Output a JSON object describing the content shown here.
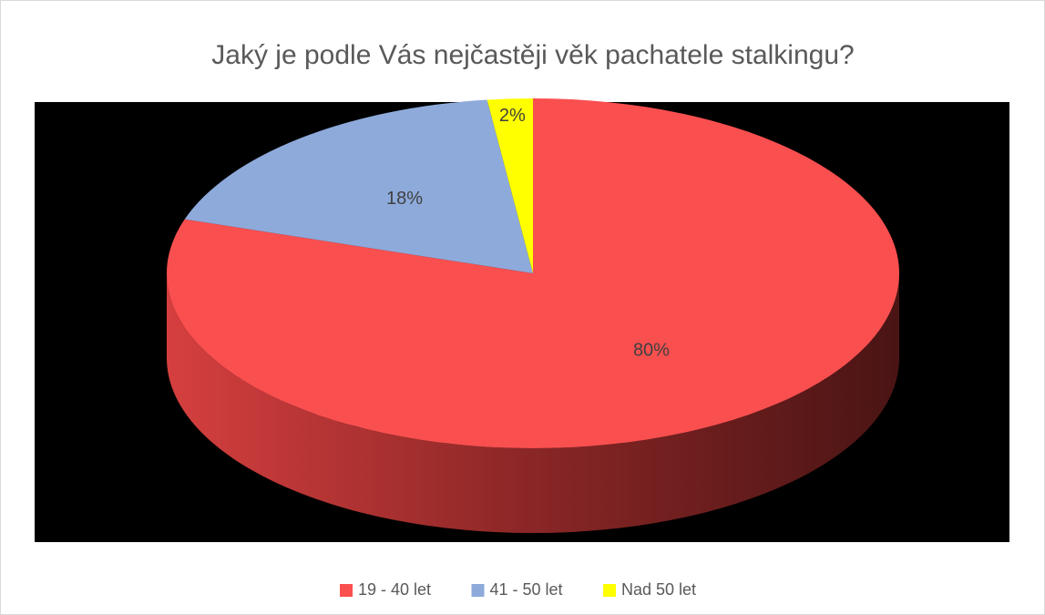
{
  "chart_data": {
    "type": "pie",
    "title": "Jaký je podle Vás nejčastěji věk pachatele stalkingu?",
    "categories": [
      "19 - 40 let",
      "41 - 50 let",
      "Nad 50 let"
    ],
    "values": [
      80,
      18,
      2
    ],
    "value_labels": [
      "80%",
      "18%",
      "2%"
    ],
    "colors": [
      "#fa4f4f",
      "#8eaadb",
      "#ffff00"
    ],
    "legend": "bottom"
  }
}
